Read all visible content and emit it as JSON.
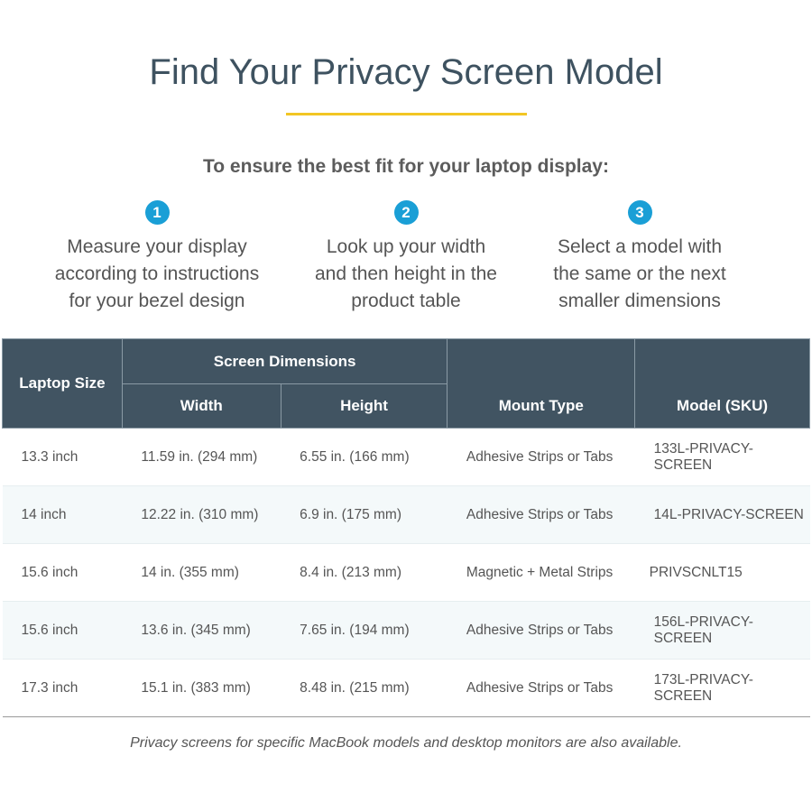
{
  "title": "Find Your Privacy Screen Model",
  "subtitle": "To ensure the best fit for your laptop display:",
  "accent": "#f2c624",
  "step_color": "#1a9fd6",
  "header_color": "#415462",
  "steps": [
    {
      "num": "1",
      "lines": [
        "Measure your display",
        "according to instructions",
        "for your bezel design"
      ]
    },
    {
      "num": "2",
      "lines": [
        "Look up your width",
        "and then height in the",
        "product table"
      ]
    },
    {
      "num": "3",
      "lines": [
        "Select a model with",
        "the same or the next",
        "smaller dimensions"
      ]
    }
  ],
  "table": {
    "headers": {
      "size": "Laptop Size",
      "dims": "Screen Dimensions",
      "width": "Width",
      "height": "Height",
      "mount": "Mount Type",
      "model": "Model (SKU)"
    },
    "rows": [
      [
        "13.3 inch",
        "11.59 in. (294 mm)",
        "6.55 in. (166 mm)",
        "Adhesive Strips or Tabs",
        "133L-PRIVACY-SCREEN"
      ],
      [
        "14 inch",
        "12.22 in. (310 mm)",
        "6.9 in. (175 mm)",
        "Adhesive Strips or Tabs",
        "14L-PRIVACY-SCREEN"
      ],
      [
        "15.6 inch",
        "14 in. (355 mm)",
        "8.4 in. (213 mm)",
        "Magnetic + Metal Strips",
        "PRIVSCNLT15"
      ],
      [
        "15.6 inch",
        "13.6 in. (345 mm)",
        "7.65 in. (194 mm)",
        "Adhesive Strips or Tabs",
        "156L-PRIVACY-SCREEN"
      ],
      [
        "17.3 inch",
        "15.1 in. (383 mm)",
        "8.48 in. (215 mm)",
        "Adhesive Strips or Tabs",
        "173L-PRIVACY-SCREEN"
      ]
    ]
  },
  "footnote": "Privacy screens for specific MacBook models and desktop monitors are also available."
}
